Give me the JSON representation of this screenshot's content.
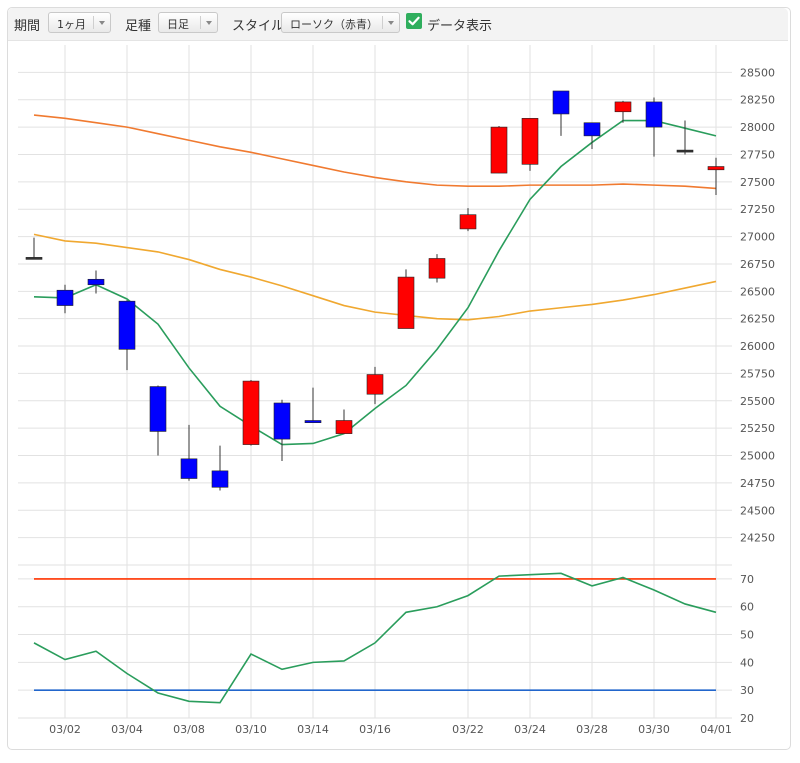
{
  "toolbar": {
    "period_label": "期間",
    "period_value": "1ヶ月",
    "bar_label": "足種",
    "bar_value": "日足",
    "style_label": "スタイル",
    "style_value": "ローソク（赤青）",
    "data_toggle_label": "データ表示",
    "data_toggle_checked": true
  },
  "chart_data": {
    "type": "candlestick",
    "x_tick_labels": [
      "03/02",
      "03/04",
      "03/08",
      "03/10",
      "03/14",
      "03/16",
      "03/22",
      "03/24",
      "03/28",
      "03/30",
      "04/01"
    ],
    "price_axis": {
      "ylim": [
        24000,
        28750
      ],
      "ticks": [
        24250,
        24500,
        24750,
        25000,
        25250,
        25500,
        25750,
        26000,
        26250,
        26500,
        26750,
        27000,
        27250,
        27500,
        27750,
        28000,
        28250,
        28500
      ]
    },
    "colors": {
      "up": "#ff0000",
      "down": "#0000ff",
      "ma_short": "#2a9d5c",
      "ma_mid": "#f0a830",
      "ma_long": "#f07a30",
      "rsi_line": "#2a9d5c",
      "rsi_upper": "#ff3300",
      "rsi_lower": "#2266cc"
    },
    "candles": [
      {
        "o": 26810,
        "h": 26990,
        "l": 26800,
        "c": 26810
      },
      {
        "o": 26510,
        "h": 26560,
        "l": 26300,
        "c": 26370
      },
      {
        "o": 26610,
        "h": 26690,
        "l": 26480,
        "c": 26560
      },
      {
        "o": 26410,
        "h": 26420,
        "l": 25780,
        "c": 25970
      },
      {
        "o": 25630,
        "h": 25640,
        "l": 25000,
        "c": 25220
      },
      {
        "o": 24970,
        "h": 25280,
        "l": 24770,
        "c": 24790
      },
      {
        "o": 24860,
        "h": 25090,
        "l": 24680,
        "c": 24710
      },
      {
        "o": 25100,
        "h": 25690,
        "l": 25090,
        "c": 25680
      },
      {
        "o": 25480,
        "h": 25510,
        "l": 24950,
        "c": 25150
      },
      {
        "o": 25320,
        "h": 25620,
        "l": 25300,
        "c": 25300
      },
      {
        "o": 25200,
        "h": 25420,
        "l": 25200,
        "c": 25320
      },
      {
        "o": 25560,
        "h": 25810,
        "l": 25470,
        "c": 25740
      },
      {
        "o": 26160,
        "h": 26700,
        "l": 26160,
        "c": 26630
      },
      {
        "o": 26620,
        "h": 26840,
        "l": 26580,
        "c": 26800
      },
      {
        "o": 27070,
        "h": 27260,
        "l": 27050,
        "c": 27200
      },
      {
        "o": 27580,
        "h": 28010,
        "l": 27580,
        "c": 28000
      },
      {
        "o": 27660,
        "h": 28080,
        "l": 27600,
        "c": 28080
      },
      {
        "o": 28330,
        "h": 28330,
        "l": 27920,
        "c": 28120
      },
      {
        "o": 28040,
        "h": 28040,
        "l": 27800,
        "c": 27920
      },
      {
        "o": 28140,
        "h": 28240,
        "l": 28040,
        "c": 28230
      },
      {
        "o": 28230,
        "h": 28270,
        "l": 27730,
        "c": 28000
      },
      {
        "o": 27790,
        "h": 28060,
        "l": 27750,
        "c": 27790
      },
      {
        "o": 27610,
        "h": 27720,
        "l": 27380,
        "c": 27640
      }
    ],
    "ma_short": [
      26450,
      26440,
      26560,
      26430,
      26200,
      25800,
      25450,
      25270,
      25100,
      25110,
      25200,
      25430,
      25640,
      25970,
      26350,
      26870,
      27340,
      27640,
      27860,
      28060,
      28060,
      27990,
      27920
    ],
    "ma_mid": [
      27020,
      26960,
      26940,
      26900,
      26860,
      26790,
      26700,
      26630,
      26550,
      26460,
      26370,
      26310,
      26280,
      26250,
      26240,
      26270,
      26320,
      26350,
      26380,
      26420,
      26470,
      26530,
      26590
    ],
    "ma_long": [
      28110,
      28080,
      28040,
      28000,
      27940,
      27880,
      27820,
      27770,
      27710,
      27650,
      27590,
      27540,
      27500,
      27470,
      27460,
      27460,
      27470,
      27470,
      27470,
      27480,
      27470,
      27460,
      27440
    ],
    "rsi_axis": {
      "ylim": [
        20,
        75
      ],
      "ticks": [
        20,
        30,
        40,
        50,
        60,
        70
      ]
    },
    "rsi": [
      47,
      41,
      44,
      36,
      29,
      26,
      25.5,
      43,
      37.5,
      40,
      40.5,
      47,
      58,
      60,
      64,
      71,
      71.5,
      72,
      67.5,
      70.5,
      66,
      61,
      58
    ],
    "rsi_upper": 70,
    "rsi_lower": 30
  }
}
